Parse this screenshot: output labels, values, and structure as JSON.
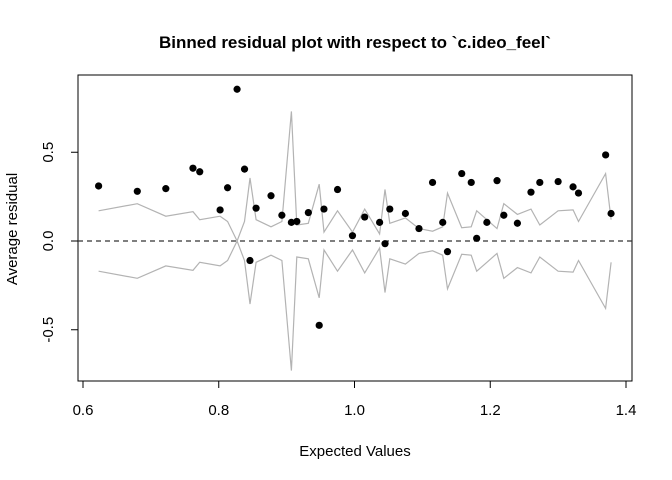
{
  "chart_data": {
    "type": "scatter",
    "title": "Binned residual plot with respect to `c.ideo_feel`",
    "xlabel": "Expected Values",
    "ylabel": "Average residual",
    "xlim": [
      0.6,
      1.4
    ],
    "ylim": [
      -0.75,
      0.9
    ],
    "x_ticks": [
      {
        "value": 0.6,
        "label": "0.6"
      },
      {
        "value": 0.8,
        "label": "0.8"
      },
      {
        "value": 1.0,
        "label": "1.0"
      },
      {
        "value": 1.2,
        "label": "1.2"
      },
      {
        "value": 1.4,
        "label": "1.4"
      }
    ],
    "y_ticks": [
      {
        "value": -0.5,
        "label": "-0.5"
      },
      {
        "value": 0.0,
        "label": "0.0"
      },
      {
        "value": 0.5,
        "label": "0.5"
      }
    ],
    "reference_line": {
      "y": 0.0,
      "style": "dashed"
    },
    "colors": {
      "points": "#000000",
      "bounds": "#b3b3b3",
      "reference": "#333333",
      "axes": "#000000"
    },
    "series": [
      {
        "kind": "points",
        "points": [
          [
            0.623,
            0.31
          ],
          [
            0.68,
            0.28
          ],
          [
            0.722,
            0.295
          ],
          [
            0.762,
            0.41
          ],
          [
            0.772,
            0.39
          ],
          [
            0.802,
            0.175
          ],
          [
            0.813,
            0.3
          ],
          [
            0.827,
            0.855
          ],
          [
            0.838,
            0.405
          ],
          [
            0.846,
            -0.11
          ],
          [
            0.855,
            0.185
          ],
          [
            0.877,
            0.255
          ],
          [
            0.893,
            0.145
          ],
          [
            0.907,
            0.105
          ],
          [
            0.915,
            0.11
          ],
          [
            0.932,
            0.16
          ],
          [
            0.948,
            -0.475
          ],
          [
            0.955,
            0.18
          ],
          [
            0.975,
            0.29
          ],
          [
            0.997,
            0.03
          ],
          [
            1.015,
            0.135
          ],
          [
            1.037,
            0.105
          ],
          [
            1.045,
            -0.015
          ],
          [
            1.052,
            0.18
          ],
          [
            1.075,
            0.155
          ],
          [
            1.095,
            0.07
          ],
          [
            1.115,
            0.33
          ],
          [
            1.13,
            0.105
          ],
          [
            1.137,
            -0.06
          ],
          [
            1.158,
            0.38
          ],
          [
            1.172,
            0.33
          ],
          [
            1.18,
            0.015
          ],
          [
            1.195,
            0.105
          ],
          [
            1.21,
            0.34
          ],
          [
            1.22,
            0.145
          ],
          [
            1.24,
            0.1
          ],
          [
            1.26,
            0.275
          ],
          [
            1.273,
            0.33
          ],
          [
            1.3,
            0.335
          ],
          [
            1.322,
            0.305
          ],
          [
            1.33,
            0.27
          ],
          [
            1.37,
            0.485
          ],
          [
            1.378,
            0.155
          ]
        ]
      },
      {
        "kind": "upper-bound",
        "points": [
          [
            0.623,
            0.17
          ],
          [
            0.68,
            0.21
          ],
          [
            0.722,
            0.14
          ],
          [
            0.762,
            0.165
          ],
          [
            0.772,
            0.12
          ],
          [
            0.802,
            0.14
          ],
          [
            0.813,
            0.11
          ],
          [
            0.827,
            0.0
          ],
          [
            0.838,
            0.11
          ],
          [
            0.846,
            0.355
          ],
          [
            0.855,
            0.12
          ],
          [
            0.877,
            0.08
          ],
          [
            0.893,
            0.11
          ],
          [
            0.907,
            0.73
          ],
          [
            0.915,
            0.09
          ],
          [
            0.932,
            0.1
          ],
          [
            0.948,
            0.32
          ],
          [
            0.955,
            0.05
          ],
          [
            0.975,
            0.17
          ],
          [
            0.997,
            0.05
          ],
          [
            1.015,
            0.18
          ],
          [
            1.037,
            0.04
          ],
          [
            1.045,
            0.29
          ],
          [
            1.052,
            0.1
          ],
          [
            1.075,
            0.13
          ],
          [
            1.095,
            0.07
          ],
          [
            1.115,
            0.055
          ],
          [
            1.13,
            0.08
          ],
          [
            1.137,
            0.27
          ],
          [
            1.158,
            0.075
          ],
          [
            1.172,
            0.08
          ],
          [
            1.18,
            0.17
          ],
          [
            1.195,
            0.12
          ],
          [
            1.21,
            0.07
          ],
          [
            1.22,
            0.21
          ],
          [
            1.24,
            0.15
          ],
          [
            1.26,
            0.18
          ],
          [
            1.273,
            0.09
          ],
          [
            1.3,
            0.17
          ],
          [
            1.322,
            0.175
          ],
          [
            1.33,
            0.11
          ],
          [
            1.37,
            0.38
          ],
          [
            1.378,
            0.12
          ]
        ]
      },
      {
        "kind": "lower-bound",
        "points": [
          [
            0.623,
            -0.17
          ],
          [
            0.68,
            -0.21
          ],
          [
            0.722,
            -0.14
          ],
          [
            0.762,
            -0.165
          ],
          [
            0.772,
            -0.12
          ],
          [
            0.802,
            -0.14
          ],
          [
            0.813,
            -0.11
          ],
          [
            0.827,
            0.0
          ],
          [
            0.838,
            -0.11
          ],
          [
            0.846,
            -0.355
          ],
          [
            0.855,
            -0.12
          ],
          [
            0.877,
            -0.08
          ],
          [
            0.893,
            -0.11
          ],
          [
            0.907,
            -0.73
          ],
          [
            0.915,
            -0.09
          ],
          [
            0.932,
            -0.1
          ],
          [
            0.948,
            -0.32
          ],
          [
            0.955,
            -0.05
          ],
          [
            0.975,
            -0.17
          ],
          [
            0.997,
            -0.05
          ],
          [
            1.015,
            -0.18
          ],
          [
            1.037,
            -0.04
          ],
          [
            1.045,
            -0.29
          ],
          [
            1.052,
            -0.1
          ],
          [
            1.075,
            -0.13
          ],
          [
            1.095,
            -0.07
          ],
          [
            1.115,
            -0.055
          ],
          [
            1.13,
            -0.08
          ],
          [
            1.137,
            -0.27
          ],
          [
            1.158,
            -0.075
          ],
          [
            1.172,
            -0.08
          ],
          [
            1.18,
            -0.17
          ],
          [
            1.195,
            -0.12
          ],
          [
            1.21,
            -0.07
          ],
          [
            1.22,
            -0.21
          ],
          [
            1.24,
            -0.15
          ],
          [
            1.26,
            -0.18
          ],
          [
            1.273,
            -0.09
          ],
          [
            1.3,
            -0.17
          ],
          [
            1.322,
            -0.175
          ],
          [
            1.33,
            -0.11
          ],
          [
            1.37,
            -0.38
          ],
          [
            1.378,
            -0.12
          ]
        ]
      }
    ]
  }
}
